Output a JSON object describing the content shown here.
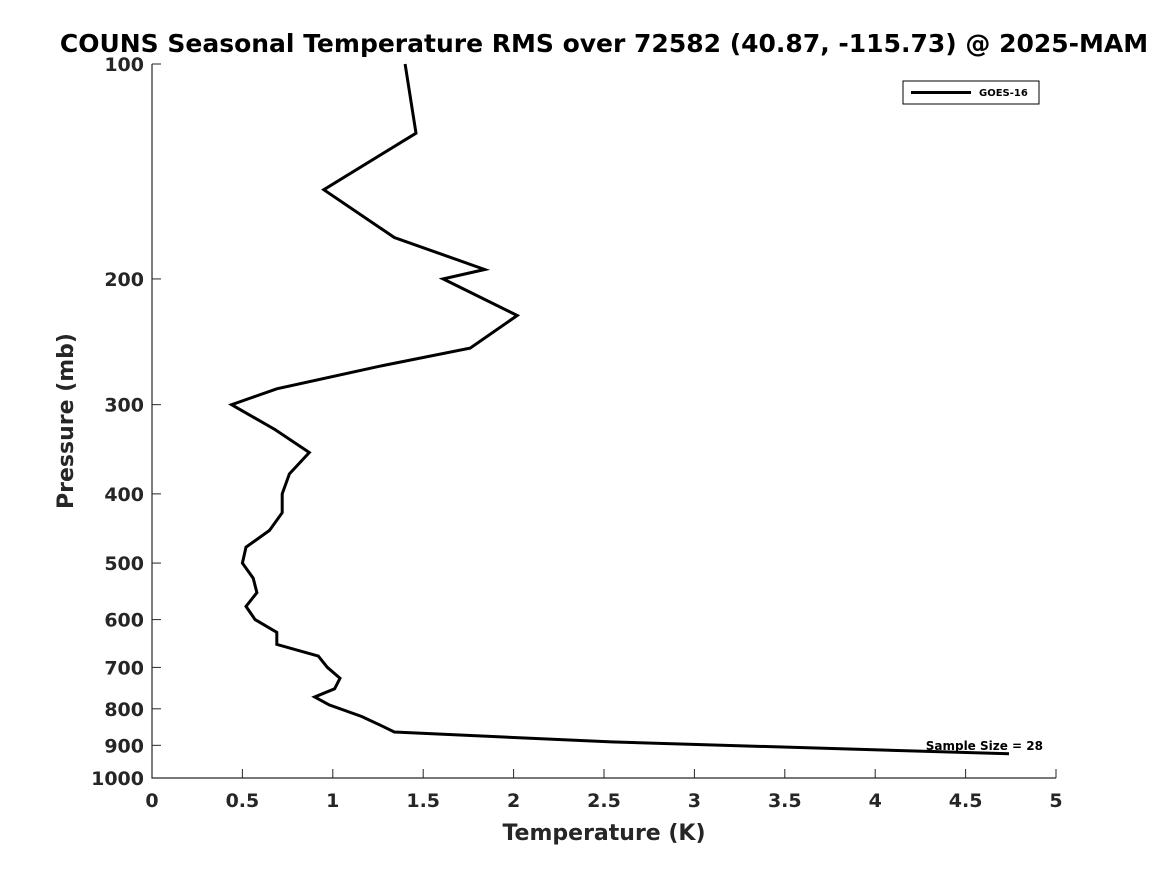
{
  "chart_data": {
    "type": "line",
    "title": "COUNS Seasonal Temperature RMS over 72582 (40.87, -115.73) @ 2025-MAM",
    "xlabel": "Temperature (K)",
    "ylabel": "Pressure (mb)",
    "xlim": [
      0,
      5
    ],
    "ylim": [
      1000,
      100
    ],
    "y_scale": "log",
    "y_reversed": true,
    "x_ticks": [
      0,
      0.5,
      1,
      1.5,
      2,
      2.5,
      3,
      3.5,
      4,
      4.5,
      5
    ],
    "x_tick_labels": [
      "0",
      "0.5",
      "1",
      "1.5",
      "2",
      "2.5",
      "3",
      "3.5",
      "4",
      "4.5",
      "5"
    ],
    "y_ticks": [
      100,
      200,
      300,
      400,
      500,
      600,
      700,
      800,
      900,
      1000
    ],
    "y_tick_labels": [
      "100",
      "200",
      "300",
      "400",
      "500",
      "600",
      "700",
      "800",
      "900",
      "1000"
    ],
    "grid": false,
    "legend_position": "top-right",
    "series": [
      {
        "name": "GOES-16",
        "color": "#000000",
        "points": [
          [
            1.4,
            100
          ],
          [
            1.46,
            125
          ],
          [
            0.95,
            150
          ],
          [
            1.34,
            175
          ],
          [
            1.84,
            194
          ],
          [
            1.61,
            200
          ],
          [
            2.02,
            225
          ],
          [
            1.76,
            250
          ],
          [
            1.26,
            265
          ],
          [
            0.69,
            285
          ],
          [
            0.44,
            300
          ],
          [
            0.68,
            325
          ],
          [
            0.87,
            350
          ],
          [
            0.76,
            375
          ],
          [
            0.72,
            400
          ],
          [
            0.72,
            425
          ],
          [
            0.65,
            450
          ],
          [
            0.52,
            475
          ],
          [
            0.5,
            500
          ],
          [
            0.56,
            525
          ],
          [
            0.58,
            550
          ],
          [
            0.52,
            575
          ],
          [
            0.57,
            600
          ],
          [
            0.69,
            625
          ],
          [
            0.69,
            650
          ],
          [
            0.92,
            675
          ],
          [
            0.97,
            700
          ],
          [
            1.04,
            725
          ],
          [
            1.01,
            750
          ],
          [
            0.9,
            770
          ],
          [
            0.98,
            790
          ],
          [
            1.16,
            820
          ],
          [
            1.27,
            845
          ],
          [
            1.34,
            862
          ],
          [
            2.54,
            890
          ],
          [
            4.74,
            925
          ]
        ]
      }
    ],
    "annotations": [
      "Sample Size = 28"
    ]
  }
}
